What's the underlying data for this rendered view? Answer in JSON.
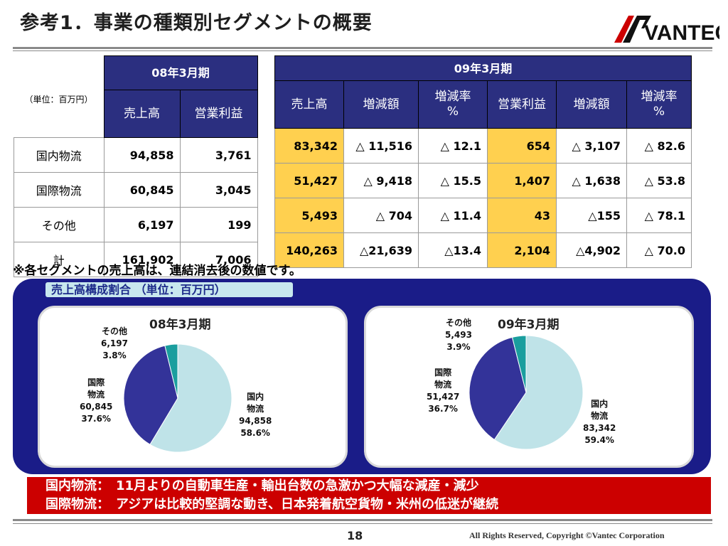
{
  "title": "参考1．事業の種類別セグメントの概要",
  "logo": {
    "text": "VANTEC",
    "icon": "vantec-logo-icon"
  },
  "unit_label": "（単位：百万円）",
  "table": {
    "period_08": "08年3月期",
    "period_09": "09年3月期",
    "col_headers_08": [
      "売上高",
      "営業利益"
    ],
    "col_headers_09": [
      "売上高",
      "増減額",
      "増減率\n%",
      "営業利益",
      "増減額",
      "増減率\n%"
    ],
    "rows": [
      {
        "label": "国内物流",
        "v08": [
          "94,858",
          "3,761"
        ],
        "v09": [
          "83,342",
          "△ 11,516",
          "△ 12.1",
          "654",
          "△ 3,107",
          "△ 82.6"
        ]
      },
      {
        "label": "国際物流",
        "v08": [
          "60,845",
          "3,045"
        ],
        "v09": [
          "51,427",
          "△ 9,418",
          "△ 15.5",
          "1,407",
          "△ 1,638",
          "△ 53.8"
        ]
      },
      {
        "label": "その他",
        "v08": [
          "6,197",
          "199"
        ],
        "v09": [
          "5,493",
          "△ 704",
          "△ 11.4",
          "43",
          "△155",
          "△ 78.1"
        ]
      },
      {
        "label": "計",
        "v08": [
          "161,902",
          "7,006"
        ],
        "v09": [
          "140,263",
          "△21,639",
          "△13.4",
          "2,104",
          "△4,902",
          "△ 70.0"
        ]
      }
    ]
  },
  "note": "※各セグメントの売上高は、連結消去後の数値です。",
  "panel_title": "売上高構成割合 （単位：百万円）",
  "colors": {
    "domestic": "#bfe3e8",
    "international": "#333399",
    "other": "#1a9e9e",
    "highlight": "#ffd04f",
    "header": "#2b2f80"
  },
  "chart_data": [
    {
      "type": "pie",
      "title": "08年3月期",
      "slices": [
        {
          "name": "国内物流",
          "label_lines": [
            "国内",
            "物流"
          ],
          "value": 94858,
          "value_text": "94,858",
          "percent": 58.6,
          "percent_text": "58.6%"
        },
        {
          "name": "国際物流",
          "label_lines": [
            "国際",
            "物流"
          ],
          "value": 60845,
          "value_text": "60,845",
          "percent": 37.6,
          "percent_text": "37.6%"
        },
        {
          "name": "その他",
          "label_lines": [
            "その他"
          ],
          "value": 6197,
          "value_text": "6,197",
          "percent": 3.8,
          "percent_text": "3.8%"
        }
      ]
    },
    {
      "type": "pie",
      "title": "09年3月期",
      "slices": [
        {
          "name": "国内物流",
          "label_lines": [
            "国内",
            "物流"
          ],
          "value": 83342,
          "value_text": "83,342",
          "percent": 59.4,
          "percent_text": "59.4%"
        },
        {
          "name": "国際物流",
          "label_lines": [
            "国際",
            "物流"
          ],
          "value": 51427,
          "value_text": "51,427",
          "percent": 36.7,
          "percent_text": "36.7%"
        },
        {
          "name": "その他",
          "label_lines": [
            "その他"
          ],
          "value": 5493,
          "value_text": "5,493",
          "percent": 3.9,
          "percent_text": "3.9%"
        }
      ]
    }
  ],
  "bullets": [
    "国内物流：　11月よりの自動車生産・輸出台数の急激かつ大幅な減産・減少",
    "国際物流：　アジアは比較的堅調な動き、日本発着航空貨物・米州の低迷が継続"
  ],
  "footer": {
    "page": "18",
    "copyright": "All Rights Reserved, Copyright ©Vantec Corporation"
  }
}
